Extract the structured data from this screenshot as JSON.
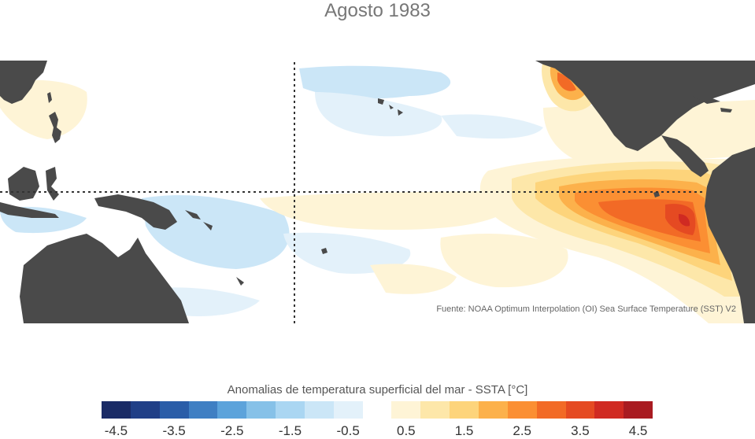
{
  "title": "Agosto 1983",
  "source": "Fuente: NOAA Optimum Interpolation (OI) Sea Surface Temperature (SST) V2",
  "legend": {
    "title": "Anomalias de temperatura superficial del mar - SSTA  [°C]",
    "colors": [
      "#1a2b66",
      "#203f87",
      "#2a5da8",
      "#3f7fc3",
      "#5ca3db",
      "#86c1e8",
      "#aad6f2",
      "#cbe6f7",
      "#e3f1fa",
      "#ffffff",
      "#fef4d6",
      "#fde7a9",
      "#fdd47b",
      "#fcb14b",
      "#fb8f33",
      "#f26a26",
      "#e54a22",
      "#d02a22",
      "#a91b21"
    ],
    "ticks": [
      "-4.5",
      "-3.5",
      "-2.5",
      "-1.5",
      "-0.5",
      "0.5",
      "1.5",
      "2.5",
      "3.5",
      "4.5"
    ]
  },
  "colors": {
    "land": "#4a4a4a",
    "ocean_neutral": "#ffffff",
    "reference_lines": "#333333"
  }
}
